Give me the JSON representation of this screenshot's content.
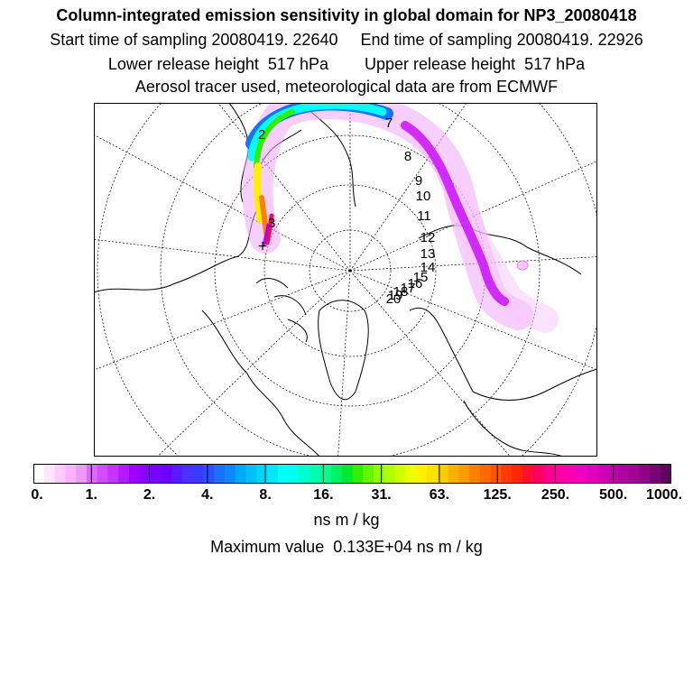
{
  "header": {
    "title": "Column-integrated emission sensitivity in global domain for NP3_20080418",
    "sampling_line": "Start time of sampling 20080419. 22640     End time of sampling 20080419. 22926",
    "release_line": "Lower release height  517 hPa        Upper release height  517 hPa",
    "source_line": "Aerosol tracer used, meteorological data are from ECMWF"
  },
  "colorbar": {
    "tick_labels": [
      "0.",
      "1.",
      "2.",
      "4.",
      "8.",
      "16.",
      "31.",
      "63.",
      "125.",
      "250.",
      "500.",
      "1000."
    ],
    "colors": [
      "#ffffff",
      "#ffe6ff",
      "#ffccff",
      "#ffb3ff",
      "#f099ff",
      "#e066ff",
      "#d24dff",
      "#c833ff",
      "#b31aff",
      "#a000ff",
      "#8c00ff",
      "#7a00ff",
      "#6a00ff",
      "#5a1aff",
      "#4a33ff",
      "#3a3aff",
      "#2a50ff",
      "#1a70ff",
      "#0f88ff",
      "#00a8ff",
      "#00c0ff",
      "#00d4ff",
      "#00e8ff",
      "#00ffff",
      "#00ffee",
      "#00ffd0",
      "#00ffb0",
      "#00ff90",
      "#00f060",
      "#00e830",
      "#30f000",
      "#60f800",
      "#90ff00",
      "#b0ff00",
      "#d0ff00",
      "#eeff00",
      "#fff000",
      "#ffe000",
      "#ffcc00",
      "#ffb000",
      "#ff9a00",
      "#ff8000",
      "#ff6a00",
      "#ff5500",
      "#ff3c00",
      "#ff2800",
      "#ff1030",
      "#ff0060",
      "#ff0090",
      "#ff00a8",
      "#f800b4",
      "#f000c0",
      "#e000c0",
      "#d000b8",
      "#c000b0",
      "#b000a0",
      "#a00096",
      "#900088",
      "#7a0078",
      "#600060"
    ],
    "units": "ns m / kg",
    "max_value_text": "Maximum value  0.133E+04 ns m / kg"
  },
  "map": {
    "projection": "polar stereographic (north)",
    "release_marker": "+",
    "day_labels": [
      "2",
      "3",
      "7",
      "8",
      "9",
      "10",
      "11",
      "12",
      "13",
      "14",
      "15",
      "16",
      "17",
      "18",
      "19",
      "20"
    ]
  }
}
